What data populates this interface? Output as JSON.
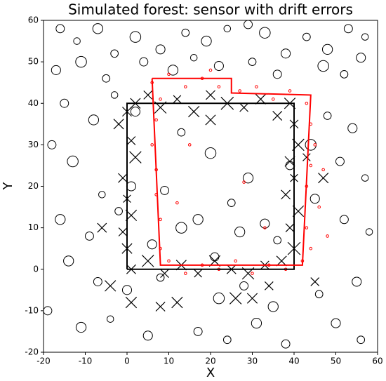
{
  "chart_data": {
    "type": "scatter",
    "title": "Simulated forest: sensor with drift errors",
    "x_label": "X",
    "y_label": "Y",
    "xlim": [
      -20,
      60
    ],
    "ylim": [
      -20,
      60
    ],
    "xticks": [
      -20,
      -10,
      0,
      10,
      20,
      30,
      40,
      50,
      60
    ],
    "yticks": [
      -20,
      -10,
      0,
      10,
      20,
      30,
      40,
      50,
      60
    ],
    "series": [
      {
        "marker": "o",
        "color": "#000000",
        "x": [
          -16,
          -12,
          -7,
          -3,
          2,
          8,
          14,
          19,
          24,
          29,
          33,
          38,
          43,
          48,
          53,
          57,
          -17,
          -11,
          -5,
          4,
          11,
          16,
          22,
          30,
          36,
          47,
          52,
          56,
          -15,
          -8,
          -3,
          2,
          13,
          20,
          29,
          39,
          48,
          54,
          -18,
          -13,
          -6,
          1,
          9,
          17,
          25,
          33,
          44,
          51,
          57,
          -16,
          -9,
          -2,
          6,
          13,
          21,
          27,
          36,
          45,
          52,
          58,
          -14,
          -7,
          0,
          8,
          22,
          28,
          35,
          46,
          55,
          -19,
          -11,
          -4,
          5,
          17,
          24,
          31,
          38,
          50,
          56
        ],
        "values": [
          58,
          55,
          58,
          52,
          56,
          53,
          57,
          55,
          58,
          59,
          57,
          52,
          56,
          53,
          58,
          56,
          48,
          50,
          46,
          50,
          48,
          51,
          49,
          50,
          47,
          49,
          47,
          51,
          40,
          36,
          42,
          38,
          33,
          28,
          22,
          25,
          37,
          34,
          30,
          26,
          18,
          20,
          19,
          12,
          16,
          11,
          30,
          26,
          22,
          12,
          8,
          14,
          6,
          10,
          3,
          9,
          7,
          17,
          12,
          9,
          2,
          -3,
          -5,
          -2,
          -7,
          -4,
          -9,
          -6,
          -3,
          -10,
          -14,
          -12,
          -16,
          -15,
          -17,
          -13,
          -18,
          -13,
          -17
        ],
        "sizes": [
          1.0,
          0.8,
          1.2,
          0.9,
          1.3,
          1.1,
          0.9,
          1.2,
          0.8,
          1.0,
          1.3,
          1.1,
          0.9,
          1.2,
          1.0,
          0.8,
          1.1,
          1.3,
          0.9,
          1.0,
          1.2,
          0.8,
          1.1,
          0.9,
          1.0,
          1.3,
          0.9,
          1.1,
          1.0,
          1.2,
          0.8,
          1.1,
          0.9,
          1.3,
          1.2,
          1.0,
          0.9,
          1.1,
          1.0,
          1.3,
          0.8,
          1.1,
          1.0,
          1.2,
          0.9,
          1.1,
          1.3,
          1.0,
          0.8,
          1.2,
          1.0,
          0.9,
          1.1,
          1.3,
          1.0,
          1.2,
          0.9,
          1.1,
          1.0,
          0.8,
          1.2,
          1.0,
          1.1,
          0.9,
          1.3,
          1.0,
          1.2,
          0.9,
          1.1,
          1.0,
          1.2,
          0.8,
          1.1,
          1.0,
          0.9,
          1.2,
          1.0,
          1.1,
          0.9
        ]
      },
      {
        "marker": "x",
        "color": "#000000",
        "x": [
          2,
          5,
          8,
          12,
          16,
          20,
          24,
          28,
          32,
          36,
          39,
          40,
          41,
          39,
          40,
          38,
          41,
          39,
          40,
          37,
          33,
          29,
          25,
          21,
          17,
          13,
          9,
          5,
          1,
          0,
          -1,
          1,
          0,
          -1,
          2,
          1,
          -2,
          0,
          1,
          45,
          47,
          43,
          -4,
          -6,
          26,
          30,
          34,
          12,
          8,
          20
        ],
        "values": [
          40,
          42,
          39,
          41,
          38,
          42,
          40,
          39,
          41,
          37,
          40,
          35,
          30,
          26,
          22,
          18,
          14,
          10,
          5,
          2,
          1,
          -1,
          0,
          2,
          -1,
          1,
          -1,
          2,
          0,
          5,
          9,
          13,
          17,
          22,
          27,
          31,
          35,
          38,
          -8,
          -3,
          22,
          27,
          -4,
          10,
          -7,
          -7,
          -4,
          -8,
          -9,
          36
        ],
        "sizes": [
          1.2,
          1.0,
          1.4,
          0.9,
          1.3,
          1.1,
          1.5,
          1.0,
          1.2,
          1.1,
          1.3,
          1.0,
          1.4,
          1.2,
          0.9,
          1.1,
          1.3,
          1.0,
          1.5,
          1.2,
          1.0,
          1.4,
          1.1,
          1.3,
          0.9,
          1.2,
          1.0,
          1.4,
          1.1,
          1.2,
          1.0,
          1.3,
          0.9,
          1.1,
          1.4,
          1.0,
          1.2,
          1.1,
          1.3,
          1.0,
          1.2,
          0.9,
          1.3,
          1.1,
          1.4,
          1.2,
          1.0,
          1.3,
          1.1,
          1.2
        ]
      },
      {
        "marker": "dot",
        "color": "#ff0000",
        "x": [
          6,
          10,
          14,
          18,
          22,
          27,
          31,
          35,
          39,
          43,
          44,
          45,
          44,
          43,
          46,
          43,
          44,
          42,
          38,
          34,
          30,
          26,
          22,
          18,
          14,
          10,
          8,
          8,
          7,
          7,
          6,
          7,
          8,
          48,
          47,
          20,
          15,
          33,
          12,
          28
        ],
        "values": [
          45,
          47,
          44,
          46,
          44,
          43,
          44,
          41,
          43,
          40,
          35,
          30,
          25,
          20,
          15,
          10,
          5,
          2,
          0,
          1,
          -1,
          2,
          0,
          1,
          -1,
          2,
          5,
          12,
          18,
          24,
          30,
          36,
          41,
          8,
          24,
          48,
          30,
          10,
          16,
          21
        ],
        "sizes": [
          0.3,
          0.3,
          0.3,
          0.3,
          0.3,
          0.3,
          0.3,
          0.3,
          0.3,
          0.3,
          0.3,
          0.3,
          0.3,
          0.3,
          0.3,
          0.3,
          0.3,
          0.3,
          0.3,
          0.3,
          0.3,
          0.3,
          0.3,
          0.3,
          0.3,
          0.3,
          0.3,
          0.3,
          0.3,
          0.3,
          0.3,
          0.3,
          0.3,
          0.3,
          0.3,
          0.3,
          0.3,
          0.3,
          0.3,
          0.3
        ]
      },
      {
        "marker": "line",
        "color": "#000000",
        "x": [
          0,
          40,
          40,
          0,
          0
        ],
        "values": [
          0,
          0,
          40,
          40,
          0
        ]
      },
      {
        "marker": "line",
        "color": "#ff0000",
        "x": [
          6,
          25,
          25,
          44,
          42,
          8,
          6
        ],
        "values": [
          46,
          46,
          42.5,
          42,
          1,
          1,
          46
        ]
      }
    ]
  }
}
